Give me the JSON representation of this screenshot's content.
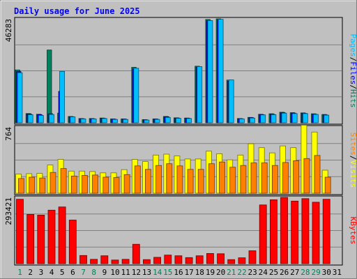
{
  "chart_data": {
    "type": "bar",
    "title": "Daily usage for June 2025",
    "categories": [
      "1",
      "2",
      "3",
      "4",
      "5",
      "6",
      "7",
      "8",
      "9",
      "10",
      "11",
      "12",
      "13",
      "14",
      "15",
      "16",
      "17",
      "18",
      "19",
      "20",
      "21",
      "22",
      "23",
      "24",
      "25",
      "26",
      "27",
      "28",
      "29",
      "30",
      "31"
    ],
    "weekend_days": [
      "1",
      "7",
      "8",
      "14",
      "15",
      "21",
      "22",
      "28",
      "29"
    ],
    "panels": [
      {
        "id": "hits",
        "right_labels": [
          "Pages",
          "Files",
          "Hits"
        ],
        "y_tick_label": "46283",
        "ylim": [
          0,
          46283
        ],
        "series": [
          {
            "name": "Hits",
            "color": "#00805c",
            "values": [
              23500,
              4100,
              3800,
              32400,
              4300,
              2800,
              1900,
              1900,
              2100,
              1700,
              1700,
              24700,
              1400,
              1700,
              2800,
              2200,
              2100,
              25200,
              46000,
              46283,
              19000,
              1900,
              2400,
              3800,
              4000,
              4700,
              4500,
              4400,
              4000,
              3700,
              null
            ]
          },
          {
            "name": "Files",
            "color": "#0000ff",
            "values": [
              22800,
              3900,
              3600,
              4000,
              14000,
              2700,
              1800,
              1800,
              2000,
              1600,
              1600,
              24000,
              1300,
              1600,
              2700,
              2100,
              2000,
              24800,
              45500,
              45800,
              18500,
              1800,
              2300,
              3600,
              3800,
              4500,
              4300,
              4200,
              3800,
              3500,
              null
            ]
          },
          {
            "name": "Pages",
            "color": "#00bfff",
            "values": [
              22300,
              3600,
              3300,
              3700,
              22900,
              2600,
              1700,
              1700,
              1900,
              1500,
              1500,
              24300,
              1200,
              1500,
              2400,
              2000,
              1900,
              25000,
              45500,
              46100,
              19100,
              1700,
              2100,
              3500,
              3600,
              4300,
              4100,
              4100,
              3700,
              3400,
              null
            ]
          }
        ]
      },
      {
        "id": "visits",
        "right_labels": [
          "Sites",
          "Visits"
        ],
        "y_tick_label": "764",
        "ylim": [
          0,
          764
        ],
        "series": [
          {
            "name": "Visits",
            "color": "#ffff00",
            "values": [
              220,
              225,
              228,
              325,
              390,
              255,
              255,
              250,
              235,
              235,
              272,
              390,
              365,
              440,
              450,
              430,
              395,
              395,
              485,
              455,
              385,
              440,
              570,
              525,
              465,
              545,
              525,
              785,
              705,
              265,
              null
            ]
          },
          {
            "name": "Sites",
            "color": "#ff8000",
            "values": [
              170,
              185,
              175,
              240,
              285,
              198,
              205,
              210,
              185,
              180,
              215,
              315,
              275,
              320,
              340,
              315,
              275,
              275,
              340,
              360,
              300,
              320,
              350,
              350,
              320,
              355,
              375,
              400,
              435,
              185,
              null
            ]
          }
        ]
      },
      {
        "id": "kbytes",
        "right_labels": [
          "KBytes"
        ],
        "y_tick_label": "293421",
        "ylim": [
          0,
          293421
        ],
        "series": [
          {
            "name": "KBytes",
            "color": "#ff0000",
            "values": [
              285000,
              218000,
              215000,
              237000,
              251000,
              193000,
              36000,
              19000,
              35000,
              16000,
              19000,
              86000,
              18000,
              28000,
              38000,
              35000,
              27000,
              35000,
              45000,
              44000,
              18000,
              26000,
              57000,
              260000,
              283000,
              293421,
              277000,
              288000,
              272000,
              285000,
              null
            ]
          }
        ]
      }
    ]
  },
  "colors": {
    "background": "#c0c0c0",
    "plot_background": "#c0c0c0",
    "title_color": "#0000ff",
    "weekend_label_color": "#00805c",
    "weekday_label_color": "#000000",
    "grid_color": "#808080"
  }
}
